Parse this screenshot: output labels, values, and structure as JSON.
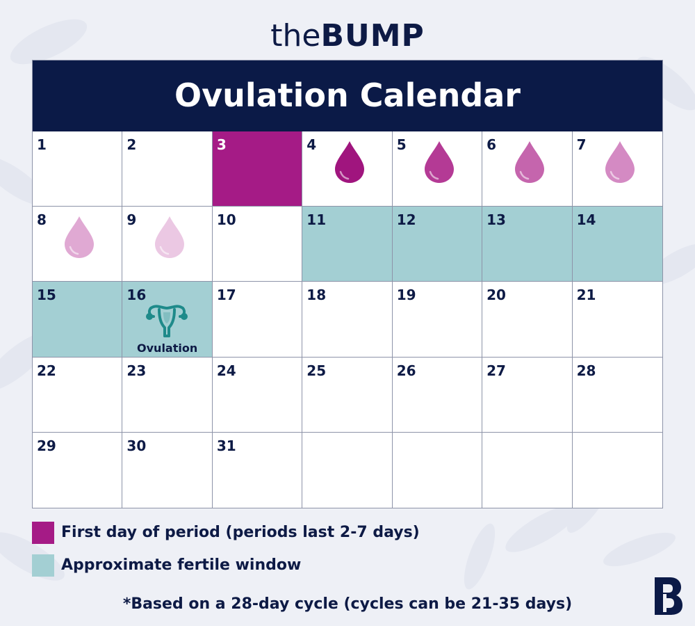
{
  "brand": {
    "prefix": "the",
    "name": "BUMP"
  },
  "calendar": {
    "title": "Ovulation Calendar",
    "cells": [
      {
        "day": "1"
      },
      {
        "day": "2"
      },
      {
        "day": "3",
        "type": "period"
      },
      {
        "day": "4",
        "drop": "#a0157e"
      },
      {
        "day": "5",
        "drop": "#b43a95"
      },
      {
        "day": "6",
        "drop": "#c565ad"
      },
      {
        "day": "7",
        "drop": "#d48ac3"
      },
      {
        "day": "8",
        "drop": "#e0a9d3"
      },
      {
        "day": "9",
        "drop": "#ebc8e3"
      },
      {
        "day": "10"
      },
      {
        "day": "11",
        "type": "fertile"
      },
      {
        "day": "12",
        "type": "fertile"
      },
      {
        "day": "13",
        "type": "fertile"
      },
      {
        "day": "14",
        "type": "fertile"
      },
      {
        "day": "15",
        "type": "fertile"
      },
      {
        "day": "16",
        "type": "fertile",
        "icon": "uterus-icon",
        "label": "Ovulation"
      },
      {
        "day": "17"
      },
      {
        "day": "18"
      },
      {
        "day": "19"
      },
      {
        "day": "20"
      },
      {
        "day": "21"
      },
      {
        "day": "22"
      },
      {
        "day": "23"
      },
      {
        "day": "24"
      },
      {
        "day": "25"
      },
      {
        "day": "26"
      },
      {
        "day": "27"
      },
      {
        "day": "28"
      },
      {
        "day": "29"
      },
      {
        "day": "30"
      },
      {
        "day": "31"
      },
      {
        "day": ""
      },
      {
        "day": ""
      },
      {
        "day": ""
      },
      {
        "day": ""
      }
    ]
  },
  "legend": [
    {
      "label": "First day of period (periods last 2-7 days)",
      "color": "#a51b86"
    },
    {
      "label": "Approximate fertile window",
      "color": "#a3cfd3"
    }
  ],
  "footnote": "*Based on a 28-day cycle (cycles can be 21-35 days)",
  "colors": {
    "navy": "#0b1a47",
    "period": "#a51b86",
    "fertile": "#a3cfd3",
    "ovulation_icon": "#1e8a8a"
  }
}
